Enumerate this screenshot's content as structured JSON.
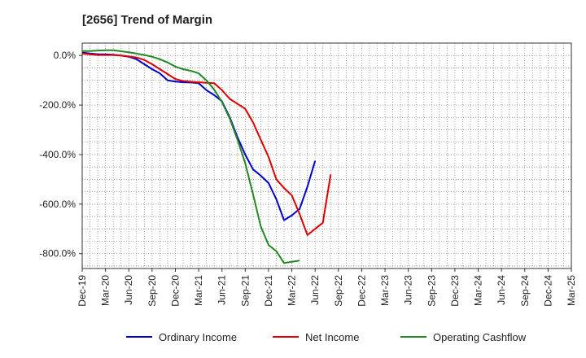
{
  "chart_data": {
    "type": "line",
    "title": "[2656]  Trend of Margin",
    "xlabel": "",
    "ylabel": "",
    "ylim": [
      -860,
      50
    ],
    "y_ticks": [
      0,
      -200,
      -400,
      -600,
      -800
    ],
    "y_tick_labels": [
      "0.0%",
      "-200.0%",
      "-400.0%",
      "-600.0%",
      "-800.0%"
    ],
    "x_tick_labels": [
      "Dec-19",
      "Mar-20",
      "Jun-20",
      "Sep-20",
      "Dec-20",
      "Mar-21",
      "Jun-21",
      "Sep-21",
      "Dec-21",
      "Mar-22",
      "Jun-22",
      "Sep-22",
      "Dec-22",
      "Mar-23",
      "Jun-23",
      "Sep-23",
      "Dec-23",
      "Mar-24",
      "Jun-24",
      "Sep-24",
      "Dec-24",
      "Mar-25"
    ],
    "grid": true,
    "legend_position": "bottom",
    "series": [
      {
        "name": "Ordinary Income",
        "color": "#0000cc",
        "values": [
          12,
          8,
          5,
          5,
          3,
          0,
          -5,
          -15,
          -35,
          -55,
          -72,
          -100,
          -105,
          -108,
          -109,
          -112,
          -140,
          -160,
          -185,
          -250,
          -330,
          -400,
          -460,
          -485,
          -515,
          -580,
          -665,
          -645,
          -620,
          -530,
          -425
        ]
      },
      {
        "name": "Net Income",
        "color": "#dd0000",
        "values": [
          8,
          5,
          2,
          2,
          2,
          0,
          -4,
          -8,
          -18,
          -35,
          -55,
          -75,
          -95,
          -103,
          -106,
          -108,
          -110,
          -112,
          -140,
          -175,
          -195,
          -215,
          -270,
          -340,
          -410,
          -500,
          -535,
          -565,
          -640,
          -725,
          -700,
          -675,
          -480
        ]
      },
      {
        "name": "Operating Cashflow",
        "color": "#228822",
        "values": [
          18,
          18,
          20,
          21,
          21,
          17,
          13,
          8,
          2,
          -5,
          -15,
          -28,
          -45,
          -55,
          -62,
          -72,
          -100,
          -138,
          -188,
          -255,
          -340,
          -435,
          -560,
          -690,
          -765,
          -790,
          -838,
          -833,
          -828
        ]
      }
    ]
  }
}
